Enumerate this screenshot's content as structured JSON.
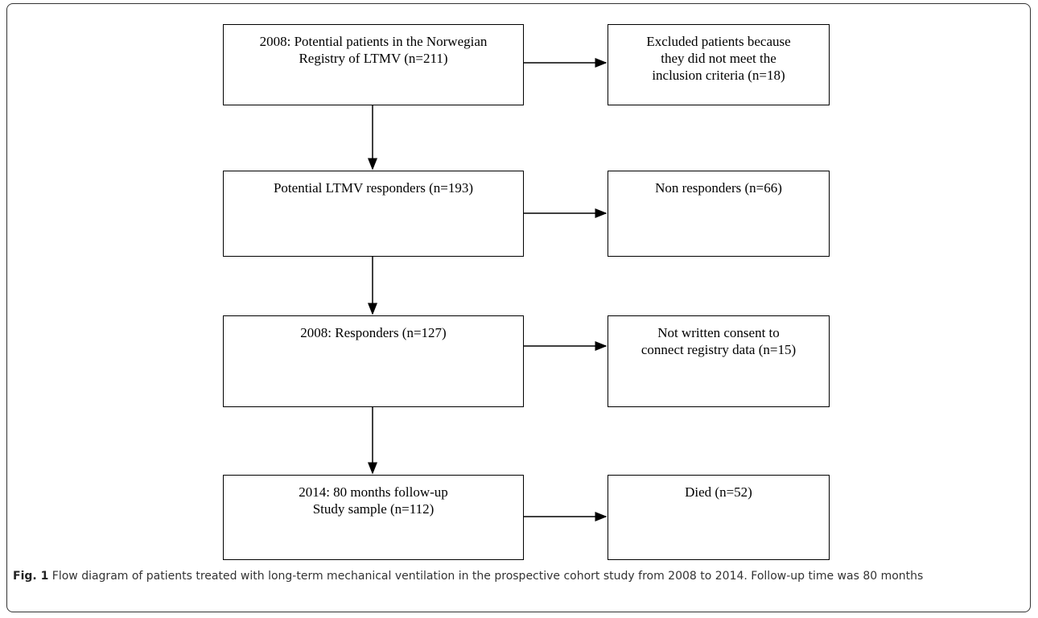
{
  "nodes": [
    {
      "lines": [
        "2008: Potential patients in the Norwegian",
        "Registry of LTMV (n=211)"
      ]
    },
    {
      "lines": [
        "Excluded patients because",
        "they did not meet the",
        "inclusion criteria (n=18)"
      ]
    },
    {
      "lines": [
        "Potential LTMV responders (n=193)"
      ]
    },
    {
      "lines": [
        "Non responders (n=66)"
      ]
    },
    {
      "lines": [
        "2008: Responders (n=127)"
      ]
    },
    {
      "lines": [
        "Not written consent to",
        "connect registry data (n=15)"
      ]
    },
    {
      "lines": [
        "2014: 80 months follow-up",
        "Study sample (n=112)"
      ]
    },
    {
      "lines": [
        "Died (n=52)"
      ]
    }
  ],
  "caption": {
    "label": "Fig. 1",
    "text": "Flow diagram of patients treated with long-term mechanical ventilation in the prospective cohort study from 2008 to 2014. Follow-up time was 80 months"
  }
}
